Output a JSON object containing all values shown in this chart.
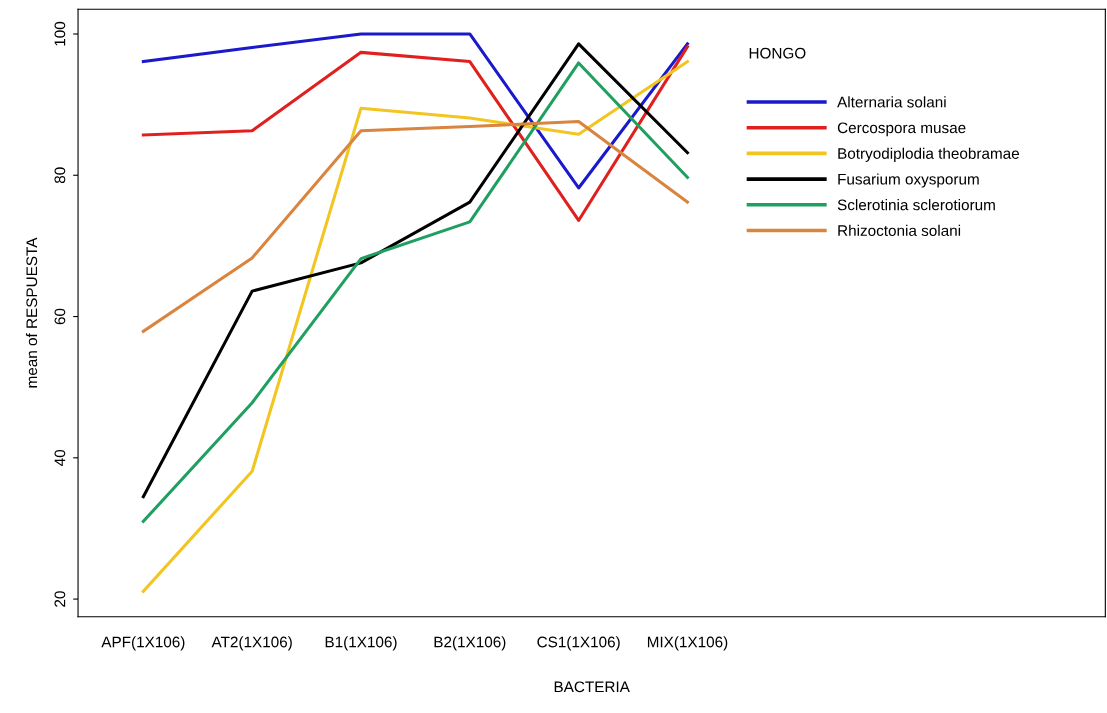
{
  "chart_data": {
    "type": "line",
    "xlabel": "BACTERIA",
    "ylabel": "mean of RESPUESTA",
    "legend_title": "HONGO",
    "categories": [
      "APF(1X106)",
      "AT2(1X106)",
      "B1(1X106)",
      "B2(1X106)",
      "CS1(1X106)",
      "MIX(1X106)"
    ],
    "ylim": [
      17.5,
      103.5
    ],
    "yticks": [
      20,
      40,
      60,
      80,
      100
    ],
    "grid": false,
    "legend": "top right",
    "marker": "none",
    "line_style": "solid",
    "series": [
      {
        "name": "Alternaria solani",
        "color": "#1a1acc",
        "values": [
          96.1,
          98.1,
          100,
          100,
          78.2,
          98.6
        ]
      },
      {
        "name": "Cercospora musae",
        "color": "#e0201f",
        "values": [
          85.7,
          86.3,
          97.4,
          96.1,
          73.6,
          98.2
        ]
      },
      {
        "name": "Botryodiplodia theobramae",
        "color": "#f2c521",
        "values": [
          21.1,
          38.1,
          89.5,
          88.1,
          85.8,
          96.1
        ]
      },
      {
        "name": "Fusarium oxysporum",
        "color": "#000000",
        "values": [
          34.5,
          63.6,
          67.6,
          76.2,
          98.6,
          83.2
        ]
      },
      {
        "name": "Sclerotinia sclerotiorum",
        "color": "#1fa060",
        "values": [
          31,
          47.8,
          68.2,
          73.4,
          95.9,
          79.7
        ]
      },
      {
        "name": "Rhizoctonia solani",
        "color": "#d9843f",
        "values": [
          57.9,
          68.3,
          86.3,
          86.9,
          87.6,
          76.2
        ]
      }
    ]
  }
}
